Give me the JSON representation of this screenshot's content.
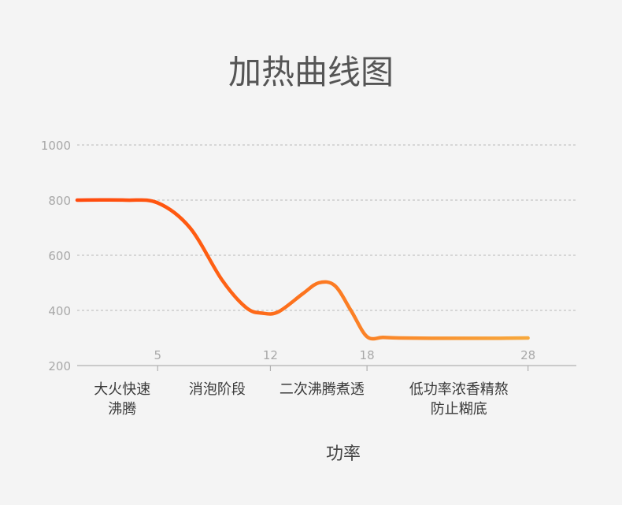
{
  "chart_data": {
    "type": "line",
    "title": "加热曲线图",
    "ylim": [
      200,
      1000
    ],
    "yticks": [
      200,
      400,
      600,
      800,
      1000
    ],
    "xticks": [
      5,
      12,
      18,
      28
    ],
    "xlim": [
      0,
      31
    ],
    "grid": true,
    "legend_position": "bottom",
    "phases": [
      {
        "lines": [
          "大火快速",
          "沸腾"
        ],
        "x_center": 2.8
      },
      {
        "lines": [
          "消泡阶段"
        ],
        "x_center": 8.7
      },
      {
        "lines": [
          "二次沸腾煮透"
        ],
        "x_center": 15.2
      },
      {
        "lines": [
          "低功率浓香精熬",
          "防止糊底"
        ],
        "x_center": 23.7
      }
    ],
    "series": [
      {
        "name": "功率",
        "color_start": "#ff4a0e",
        "color_end": "#f7a83c",
        "x": [
          0,
          3,
          5,
          7,
          9,
          10.5,
          11.5,
          12.5,
          14,
          15,
          16,
          17,
          18,
          19,
          20,
          22,
          24,
          26,
          28
        ],
        "y": [
          800,
          800,
          790,
          700,
          510,
          410,
          390,
          395,
          460,
          500,
          490,
          400,
          305,
          302,
          300,
          299,
          299,
          299,
          300
        ]
      }
    ]
  }
}
